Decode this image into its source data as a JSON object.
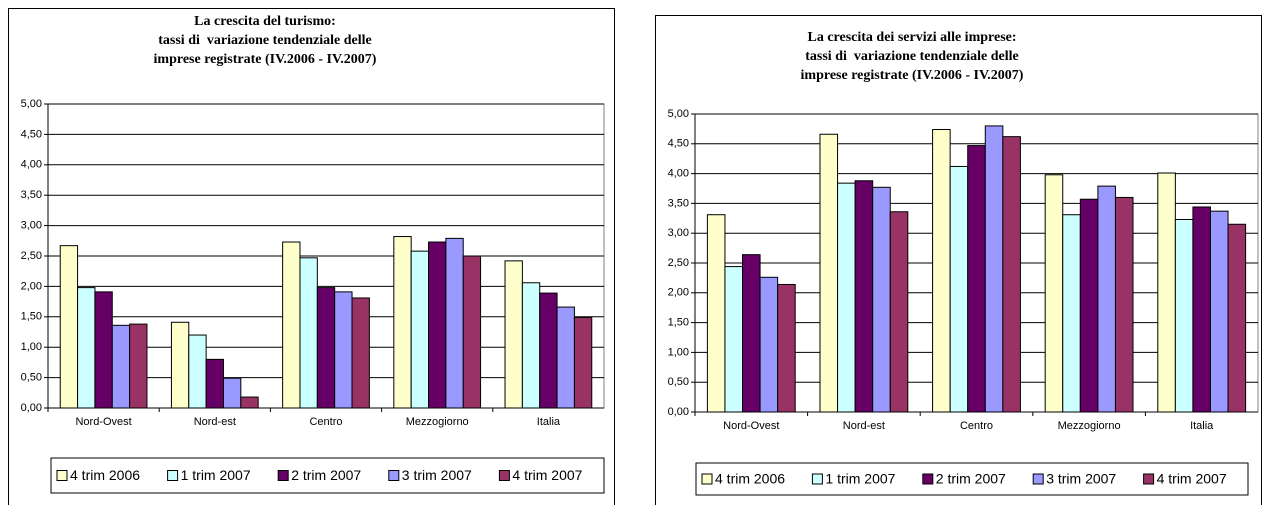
{
  "chart_data": [
    {
      "type": "bar",
      "title": [
        "La crescita del turismo:",
        "tassi di  variazione tendenziale delle",
        "imprese registrate (IV.2006 - IV.2007)"
      ],
      "categories": [
        "Nord-Ovest",
        "Nord-est",
        "Centro",
        "Mezzogiorno",
        "Italia"
      ],
      "series": [
        {
          "name": "4 trim 2006",
          "color": "#ffffcc",
          "values": [
            2.67,
            1.41,
            2.73,
            2.82,
            2.42
          ]
        },
        {
          "name": "1 trim 2007",
          "color": "#ccffff",
          "values": [
            1.98,
            1.2,
            2.47,
            2.58,
            2.06
          ]
        },
        {
          "name": "2 trim 2007",
          "color": "#660066",
          "values": [
            1.91,
            0.8,
            1.98,
            2.73,
            1.89
          ]
        },
        {
          "name": "3 trim 2007",
          "color": "#9999ff",
          "values": [
            1.36,
            0.49,
            1.91,
            2.79,
            1.66
          ]
        },
        {
          "name": "4 trim 2007",
          "color": "#993366",
          "values": [
            1.38,
            0.18,
            1.81,
            2.5,
            1.49
          ]
        }
      ],
      "ylim": [
        0,
        5
      ],
      "yticks": [
        {
          "value": 0,
          "label": "0,00"
        },
        {
          "value": 0.5,
          "label": "0,50"
        },
        {
          "value": 1,
          "label": "1,00"
        },
        {
          "value": 1.5,
          "label": "1,50"
        },
        {
          "value": 2,
          "label": "2,00"
        },
        {
          "value": 2.5,
          "label": "2,50"
        },
        {
          "value": 3,
          "label": "3,00"
        },
        {
          "value": 3.5,
          "label": "3,50"
        },
        {
          "value": 4,
          "label": "4,00"
        },
        {
          "value": 4.5,
          "label": "4,50"
        },
        {
          "value": 5,
          "label": "5,00"
        }
      ],
      "grid": true,
      "legend": "bottom"
    },
    {
      "type": "bar",
      "title": [
        "La crescita dei servizi alle imprese:",
        "tassi di  variazione tendenziale delle",
        "imprese registrate (IV.2006 - IV.2007)"
      ],
      "categories": [
        "Nord-Ovest",
        "Nord-est",
        "Centro",
        "Mezzogiorno",
        "Italia"
      ],
      "series": [
        {
          "name": "4 trim 2006",
          "color": "#ffffcc",
          "values": [
            3.31,
            4.66,
            4.74,
            3.98,
            4.01
          ]
        },
        {
          "name": "1 trim 2007",
          "color": "#ccffff",
          "values": [
            2.44,
            3.84,
            4.12,
            3.31,
            3.23
          ]
        },
        {
          "name": "2 trim 2007",
          "color": "#660066",
          "values": [
            2.64,
            3.88,
            4.47,
            3.57,
            3.44
          ]
        },
        {
          "name": "3 trim 2007",
          "color": "#9999ff",
          "values": [
            2.26,
            3.77,
            4.8,
            3.79,
            3.37
          ]
        },
        {
          "name": "4 trim 2007",
          "color": "#993366",
          "values": [
            2.14,
            3.36,
            4.62,
            3.6,
            3.15
          ]
        }
      ],
      "ylim": [
        0,
        5
      ],
      "yticks": [
        {
          "value": 0,
          "label": "0,00"
        },
        {
          "value": 0.5,
          "label": "0,50"
        },
        {
          "value": 1,
          "label": "1,00"
        },
        {
          "value": 1.5,
          "label": "1,50"
        },
        {
          "value": 2,
          "label": "2,00"
        },
        {
          "value": 2.5,
          "label": "2,50"
        },
        {
          "value": 3,
          "label": "3,00"
        },
        {
          "value": 3.5,
          "label": "3,50"
        },
        {
          "value": 4,
          "label": "4,00"
        },
        {
          "value": 4.5,
          "label": "4,50"
        },
        {
          "value": 5,
          "label": "5,00"
        }
      ],
      "grid": true,
      "legend": "bottom"
    }
  ]
}
